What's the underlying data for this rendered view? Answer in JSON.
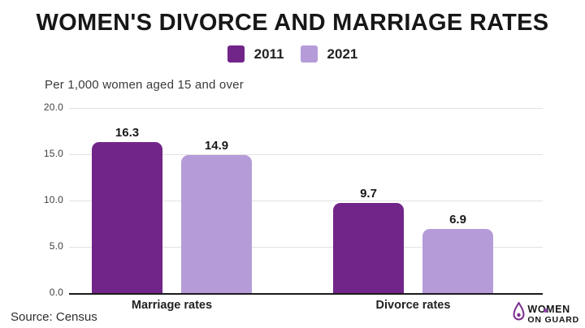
{
  "header": {
    "title": "WOMEN'S DIVORCE AND MARRIAGE RATES"
  },
  "legend": {
    "items": [
      {
        "label": "2011",
        "color": "#722589"
      },
      {
        "label": "2021",
        "color": "#B59CD9"
      }
    ]
  },
  "subtitle": "Per 1,000 women aged 15 and over",
  "chart_data": {
    "type": "bar",
    "title": "WOMEN'S DIVORCE AND MARRIAGE RATES",
    "subtitle": "Per 1,000 women aged 15 and over",
    "categories": [
      "Marriage rates",
      "Divorce rates"
    ],
    "series": [
      {
        "name": "2011",
        "color": "#722589",
        "values": [
          16.3,
          9.7
        ]
      },
      {
        "name": "2021",
        "color": "#B59CD9",
        "values": [
          14.9,
          6.9
        ]
      }
    ],
    "xlabel": "",
    "ylabel": "",
    "ylim": [
      0,
      20
    ],
    "yticks": [
      20.0,
      15.0,
      10.0,
      5.0,
      0.0
    ],
    "ytick_labels": [
      "20.0",
      "15.0",
      "10.0",
      "5.0",
      "0.0"
    ],
    "grid": true,
    "legend_position": "top",
    "value_labels": true
  },
  "footer": {
    "source": "Source: Census"
  },
  "logo": {
    "line1": "WOMEN",
    "line2": "ON GUARD",
    "accent_color": "#7B2D8E"
  },
  "colors": {
    "title_text": "#171717",
    "gridline": "#e2e2e2",
    "axis_line": "#1b1b1b",
    "background": "#ffffff"
  }
}
